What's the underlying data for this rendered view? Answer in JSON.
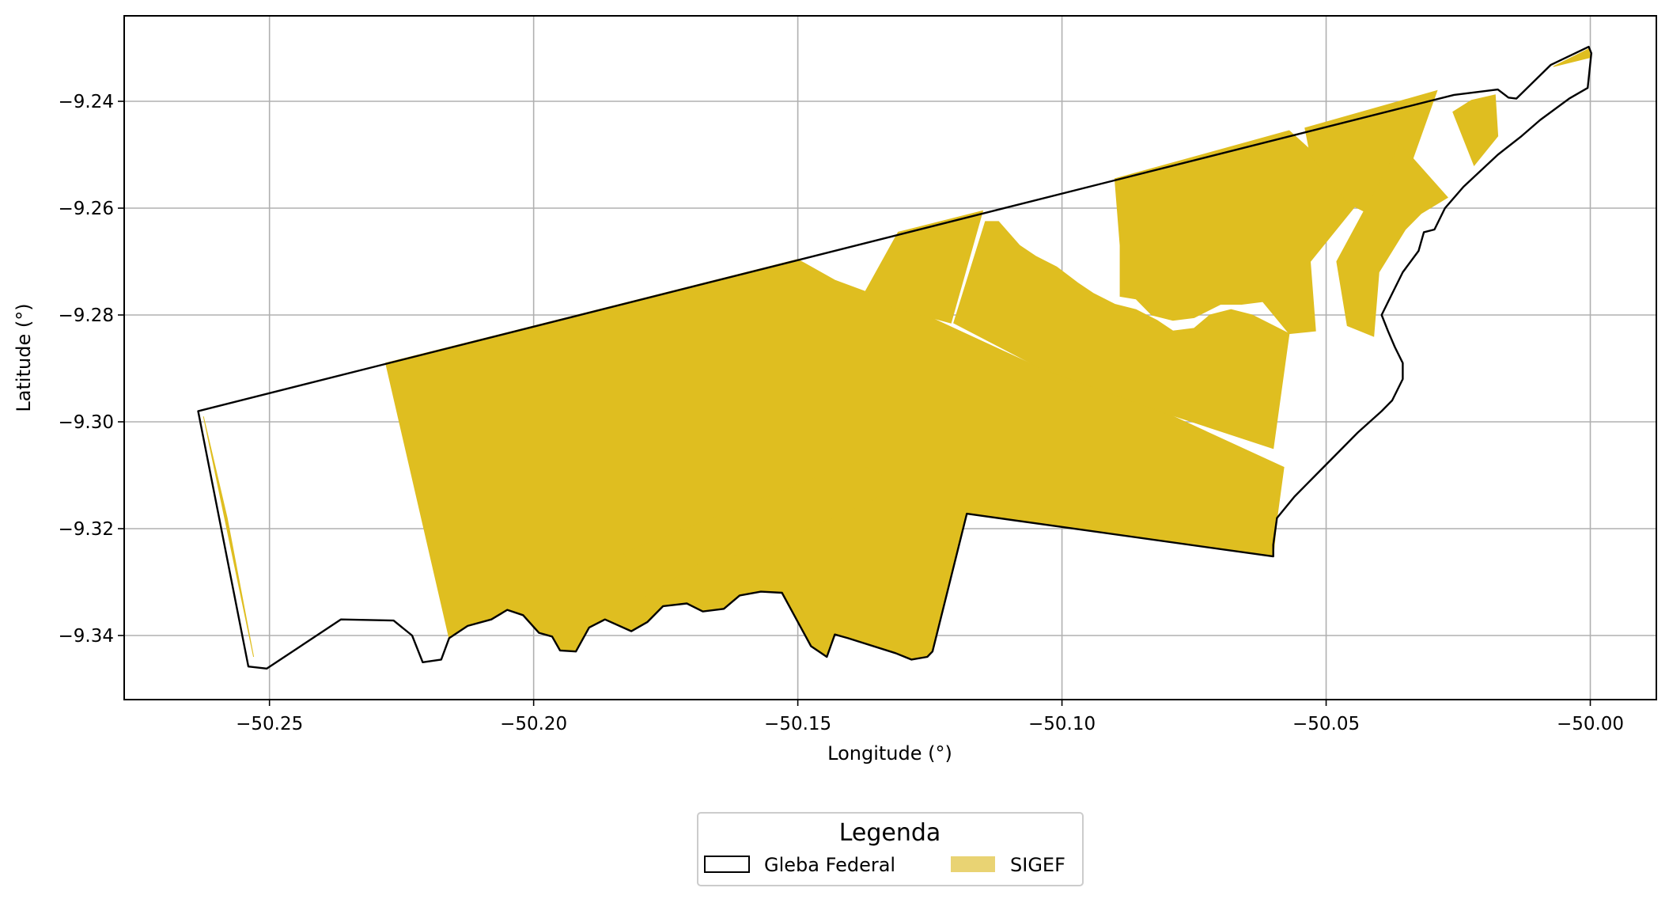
{
  "chart_data": {
    "type": "map",
    "xlabel": "Longitude (°)",
    "ylabel": "Latitude (°)",
    "xlim": [
      -50.2775,
      49.9875
    ],
    "ylim": [
      -9.352,
      -9.224
    ],
    "xticks": [
      -50.25,
      -50.2,
      -50.15,
      -50.1,
      -50.05,
      -50.0
    ],
    "xtick_labels": [
      "−50.25",
      "−50.20",
      "−50.15",
      "−50.10",
      "−50.05",
      "−50.00"
    ],
    "yticks": [
      -9.24,
      -9.26,
      -9.28,
      -9.3,
      -9.32,
      -9.34
    ],
    "ytick_labels": [
      "−9.24",
      "−9.26",
      "−9.28",
      "−9.30",
      "−9.32",
      "−9.34"
    ],
    "grid": true,
    "legend": {
      "title": "Legenda",
      "placement": "bottom-center",
      "items": [
        {
          "label": "Gleba Federal",
          "style": "outline"
        },
        {
          "label": "SIGEF",
          "style": "fill"
        }
      ]
    },
    "colors": {
      "sigef_fill": "#dfbe20",
      "sigef_legend": "#e9d373",
      "outline": "#000000",
      "grid": "#b0b0b0"
    },
    "layers": {
      "gleba_federal_outline": [
        [
          -50.2635,
          -9.298
        ],
        [
          -50.0258,
          -9.2388
        ],
        [
          -50.0175,
          -9.2378
        ],
        [
          -50.0155,
          -9.2393
        ],
        [
          -50.014,
          -9.2395
        ],
        [
          -50.0075,
          -9.2332
        ],
        [
          -50.0003,
          -9.2298
        ],
        [
          -49.9998,
          -9.231
        ],
        [
          -50.0005,
          -9.2375
        ],
        [
          -50.004,
          -9.2395
        ],
        [
          -50.0095,
          -9.2435
        ],
        [
          -50.013,
          -9.2465
        ],
        [
          -50.0175,
          -9.25
        ],
        [
          -50.024,
          -9.256
        ],
        [
          -50.0275,
          -9.26
        ],
        [
          -50.0295,
          -9.264
        ],
        [
          -50.0315,
          -9.2645
        ],
        [
          -50.0325,
          -9.268
        ],
        [
          -50.0355,
          -9.272
        ],
        [
          -50.0375,
          -9.276
        ],
        [
          -50.0395,
          -9.28
        ],
        [
          -50.0383,
          -9.283
        ],
        [
          -50.037,
          -9.286
        ],
        [
          -50.0355,
          -9.289
        ],
        [
          -50.0355,
          -9.292
        ],
        [
          -50.0375,
          -9.296
        ],
        [
          -50.0395,
          -9.298
        ],
        [
          -50.044,
          -9.302
        ],
        [
          -50.048,
          -9.306
        ],
        [
          -50.052,
          -9.31
        ],
        [
          -50.056,
          -9.314
        ],
        [
          -50.0593,
          -9.318
        ],
        [
          -50.06,
          -9.323
        ],
        [
          -50.06,
          -9.3252
        ],
        [
          -50.118,
          -9.3172
        ],
        [
          -50.1245,
          -9.343
        ],
        [
          -50.1255,
          -9.344
        ],
        [
          -50.1285,
          -9.3445
        ],
        [
          -50.1315,
          -9.3433
        ],
        [
          -50.1405,
          -9.3405
        ],
        [
          -50.143,
          -9.3398
        ],
        [
          -50.1445,
          -9.344
        ],
        [
          -50.1475,
          -9.342
        ],
        [
          -50.153,
          -9.332
        ],
        [
          -50.157,
          -9.3318
        ],
        [
          -50.161,
          -9.3325
        ],
        [
          -50.164,
          -9.335
        ],
        [
          -50.168,
          -9.3355
        ],
        [
          -50.171,
          -9.334
        ],
        [
          -50.1755,
          -9.3345
        ],
        [
          -50.1785,
          -9.3375
        ],
        [
          -50.1815,
          -9.3392
        ],
        [
          -50.1865,
          -9.337
        ],
        [
          -50.1895,
          -9.3385
        ],
        [
          -50.192,
          -9.343
        ],
        [
          -50.195,
          -9.3428
        ],
        [
          -50.1965,
          -9.3402
        ],
        [
          -50.199,
          -9.3395
        ],
        [
          -50.202,
          -9.3362
        ],
        [
          -50.205,
          -9.3352
        ],
        [
          -50.208,
          -9.337
        ],
        [
          -50.2125,
          -9.3382
        ],
        [
          -50.216,
          -9.3405
        ],
        [
          -50.2175,
          -9.3445
        ],
        [
          -50.221,
          -9.345
        ],
        [
          -50.223,
          -9.34
        ],
        [
          -50.2265,
          -9.3372
        ],
        [
          -50.2365,
          -9.337
        ],
        [
          -50.2505,
          -9.3462
        ],
        [
          -50.254,
          -9.3458
        ],
        [
          -50.2635,
          -9.298
        ]
      ],
      "sigef_polygons": [
        [
          [
            -50.228,
            -9.289
          ],
          [
            -50.209,
            -9.2843
          ],
          [
            -50.15,
            -9.2696
          ],
          [
            -50.143,
            -9.2735
          ],
          [
            -50.1285,
            -9.2788
          ],
          [
            -50.104,
            -9.29
          ],
          [
            -50.08,
            -9.2985
          ],
          [
            -50.058,
            -9.3085
          ],
          [
            -50.0593,
            -9.318
          ],
          [
            -50.06,
            -9.3252
          ],
          [
            -50.118,
            -9.3172
          ],
          [
            -50.1245,
            -9.343
          ],
          [
            -50.1255,
            -9.344
          ],
          [
            -50.1285,
            -9.3445
          ],
          [
            -50.1315,
            -9.3433
          ],
          [
            -50.1405,
            -9.3405
          ],
          [
            -50.143,
            -9.3398
          ],
          [
            -50.1445,
            -9.344
          ],
          [
            -50.1475,
            -9.342
          ],
          [
            -50.153,
            -9.332
          ],
          [
            -50.157,
            -9.3318
          ],
          [
            -50.161,
            -9.3325
          ],
          [
            -50.164,
            -9.335
          ],
          [
            -50.168,
            -9.3355
          ],
          [
            -50.171,
            -9.334
          ],
          [
            -50.1755,
            -9.3345
          ],
          [
            -50.1785,
            -9.3375
          ],
          [
            -50.1815,
            -9.3392
          ],
          [
            -50.1865,
            -9.337
          ],
          [
            -50.1895,
            -9.3385
          ],
          [
            -50.192,
            -9.343
          ],
          [
            -50.195,
            -9.3428
          ],
          [
            -50.1965,
            -9.3402
          ],
          [
            -50.199,
            -9.3395
          ],
          [
            -50.202,
            -9.3362
          ],
          [
            -50.205,
            -9.3352
          ],
          [
            -50.208,
            -9.337
          ],
          [
            -50.2125,
            -9.3382
          ],
          [
            -50.216,
            -9.3405
          ],
          [
            -50.228,
            -9.289
          ]
        ],
        [
          [
            -50.183,
            -9.3245
          ],
          [
            -50.18,
            -9.3335
          ],
          [
            -50.168,
            -9.326
          ],
          [
            -50.158,
            -9.3245
          ],
          [
            -50.1345,
            -9.314
          ],
          [
            -50.134,
            -9.31
          ],
          [
            -50.139,
            -9.3075
          ],
          [
            -50.183,
            -9.3245
          ]
        ],
        [
          [
            -50.131,
            -9.2645
          ],
          [
            -50.115,
            -9.2605
          ],
          [
            -50.121,
            -9.2815
          ],
          [
            -50.138,
            -9.277
          ],
          [
            -50.131,
            -9.2645
          ]
        ],
        [
          [
            -50.1145,
            -9.2625
          ],
          [
            -50.112,
            -9.2625
          ],
          [
            -50.108,
            -9.267
          ],
          [
            -50.105,
            -9.269
          ],
          [
            -50.101,
            -9.271
          ],
          [
            -50.097,
            -9.274
          ],
          [
            -50.094,
            -9.276
          ],
          [
            -50.09,
            -9.278
          ],
          [
            -50.086,
            -9.279
          ],
          [
            -50.082,
            -9.281
          ],
          [
            -50.079,
            -9.283
          ],
          [
            -50.075,
            -9.2825
          ],
          [
            -50.072,
            -9.28
          ],
          [
            -50.068,
            -9.279
          ],
          [
            -50.064,
            -9.28
          ],
          [
            -50.06,
            -9.282
          ],
          [
            -50.057,
            -9.2835
          ],
          [
            -50.06,
            -9.305
          ],
          [
            -50.08,
            -9.2985
          ],
          [
            -50.104,
            -9.29
          ],
          [
            -50.1205,
            -9.2815
          ],
          [
            -50.1145,
            -9.2625
          ]
        ],
        [
          [
            -50.09,
            -9.2545
          ],
          [
            -50.057,
            -9.2455
          ],
          [
            -50.043,
            -9.258
          ],
          [
            -50.0375,
            -9.264
          ],
          [
            -50.044,
            -9.259
          ],
          [
            -50.053,
            -9.27
          ],
          [
            -50.052,
            -9.283
          ],
          [
            -50.057,
            -9.2835
          ],
          [
            -50.062,
            -9.2775
          ],
          [
            -50.066,
            -9.278
          ],
          [
            -50.07,
            -9.278
          ],
          [
            -50.075,
            -9.2805
          ],
          [
            -50.079,
            -9.281
          ],
          [
            -50.083,
            -9.28
          ],
          [
            -50.086,
            -9.277
          ],
          [
            -50.089,
            -9.2765
          ],
          [
            -50.089,
            -9.267
          ],
          [
            -50.09,
            -9.2545
          ]
        ],
        [
          [
            -50.054,
            -9.245
          ],
          [
            -50.029,
            -9.238
          ],
          [
            -50.038,
            -9.263
          ],
          [
            -50.046,
            -9.259
          ],
          [
            -50.053,
            -9.25
          ],
          [
            -50.054,
            -9.245
          ]
        ],
        [
          [
            -50.036,
            -9.248
          ],
          [
            -50.027,
            -9.258
          ],
          [
            -50.032,
            -9.261
          ],
          [
            -50.035,
            -9.264
          ],
          [
            -50.04,
            -9.272
          ],
          [
            -50.041,
            -9.284
          ],
          [
            -50.046,
            -9.282
          ],
          [
            -50.048,
            -9.27
          ],
          [
            -50.036,
            -9.248
          ]
        ],
        [
          [
            -50.0225,
            -9.2398
          ],
          [
            -50.018,
            -9.2388
          ],
          [
            -50.0175,
            -9.2465
          ],
          [
            -50.022,
            -9.252
          ],
          [
            -50.026,
            -9.242
          ],
          [
            -50.0225,
            -9.2398
          ]
        ],
        [
          [
            -50.007,
            -9.2335
          ],
          [
            -50.0003,
            -9.2302
          ],
          [
            -50.0,
            -9.2318
          ],
          [
            -50.007,
            -9.2335
          ]
        ],
        [
          [
            -50.2625,
            -9.299
          ],
          [
            -50.258,
            -9.318
          ],
          [
            -50.253,
            -9.344
          ],
          [
            -50.2625,
            -9.299
          ]
        ]
      ]
    }
  }
}
